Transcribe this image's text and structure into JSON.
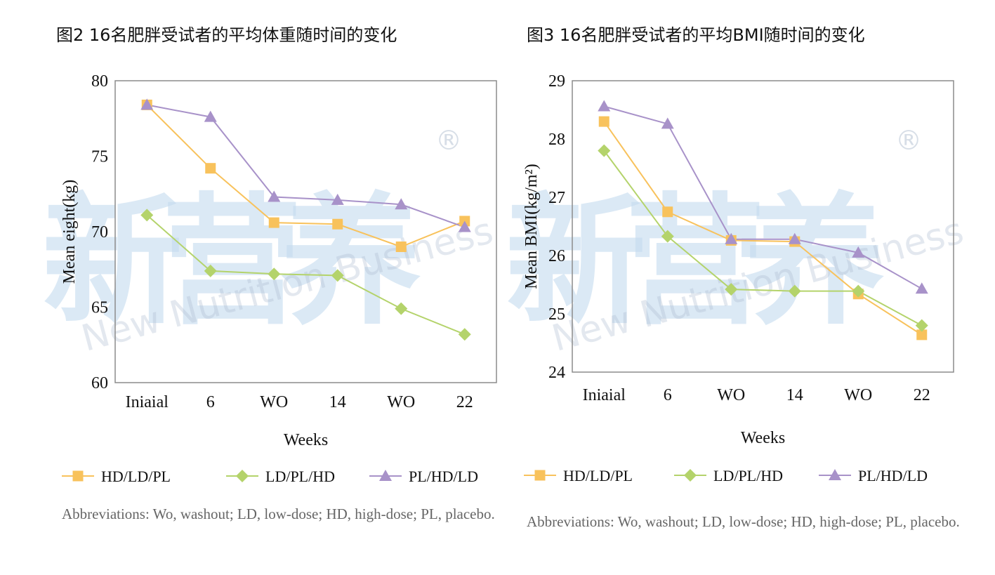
{
  "figures": [
    {
      "title": "图2 16名肥胖受试者的平均体重随时间的变化",
      "abbreviations": "Abbreviations: Wo, washout; LD, low-dose; HD, high-dose; PL, placebo."
    },
    {
      "title": "图3 16名肥胖受试者的平均BMI随时间的变化",
      "abbreviations": "Abbreviations: Wo, washout; LD, low-dose; HD, high-dose; PL, placebo."
    }
  ],
  "watermark": {
    "chinese": "新营养",
    "english": "New Nutrition Business",
    "mark": "®"
  },
  "chart_data": [
    {
      "type": "line",
      "title": "",
      "xlabel": "Weeks",
      "ylabel": "Mean eight(kg)",
      "categories": [
        "Iniaial",
        "6",
        "WO",
        "14",
        "WO",
        "22"
      ],
      "ylim": [
        60,
        80
      ],
      "yticks": [
        60,
        65,
        70,
        75,
        80
      ],
      "grid": false,
      "legend_position": "bottom",
      "series": [
        {
          "name": "HD/LD/PL",
          "marker": "square",
          "color": "#F8C25C",
          "values": [
            78.4,
            74.2,
            70.6,
            70.5,
            69.0,
            70.7
          ]
        },
        {
          "name": "LD/PL/HD",
          "marker": "diamond",
          "color": "#B4D36B",
          "values": [
            71.1,
            67.4,
            67.2,
            67.1,
            64.9,
            63.2
          ]
        },
        {
          "name": "PL/HD/LD",
          "marker": "triangle",
          "color": "#A892C9",
          "values": [
            78.4,
            77.6,
            72.3,
            72.1,
            71.8,
            70.3
          ]
        }
      ]
    },
    {
      "type": "line",
      "title": "",
      "xlabel": "Weeks",
      "ylabel": "Mean BMI(kg/m²)",
      "categories": [
        "Iniaial",
        "6",
        "WO",
        "14",
        "WO",
        "22"
      ],
      "ylim": [
        24,
        29
      ],
      "yticks": [
        24,
        25,
        26,
        27,
        28,
        29
      ],
      "grid": false,
      "legend_position": "bottom",
      "series": [
        {
          "name": "HD/LD/PL",
          "marker": "square",
          "color": "#F8C25C",
          "values": [
            28.3,
            26.75,
            26.26,
            26.24,
            25.34,
            24.64
          ]
        },
        {
          "name": "LD/PL/HD",
          "marker": "diamond",
          "color": "#B4D36B",
          "values": [
            27.8,
            26.33,
            25.42,
            25.39,
            25.39,
            24.8
          ]
        },
        {
          "name": "PL/HD/LD",
          "marker": "triangle",
          "color": "#A892C9",
          "values": [
            28.56,
            28.26,
            26.28,
            26.28,
            26.05,
            25.43
          ]
        }
      ]
    }
  ]
}
